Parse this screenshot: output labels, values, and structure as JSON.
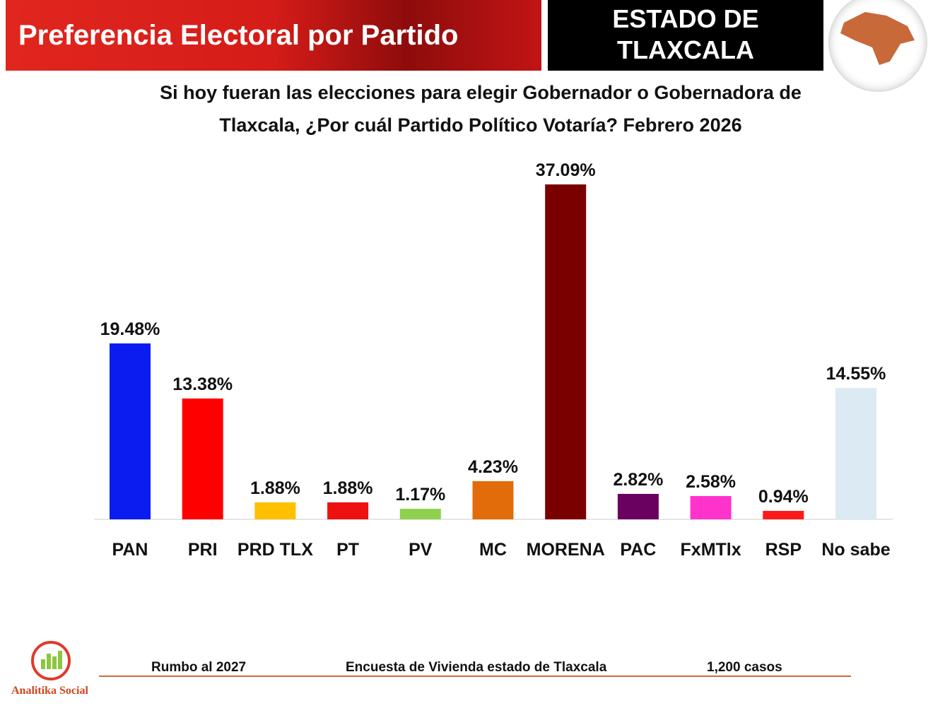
{
  "header": {
    "title": "Preferencia Electoral por Partido",
    "state_line1": "ESTADO DE",
    "state_line2": "TLAXCALA"
  },
  "chart_data": {
    "type": "bar",
    "title": "Si hoy fueran las elecciones para elegir Gobernador o Gobernadora de Tlaxcala, ¿Por cuál Partido Político Votaría? Febrero 2026",
    "title_line1": "Si hoy fueran las elecciones para elegir Gobernador o Gobernadora de",
    "title_line2": "Tlaxcala, ¿Por cuál Partido Político Votaría? Febrero 2026",
    "categories": [
      "PAN",
      "PRI",
      "PRD TLX",
      "PT",
      "PV",
      "MC",
      "MORENA",
      "PAC",
      "FxMTlx",
      "RSP",
      "No sabe"
    ],
    "values": [
      19.48,
      13.38,
      1.88,
      1.88,
      1.17,
      4.23,
      37.09,
      2.82,
      2.58,
      0.94,
      14.55
    ],
    "labels": [
      "19.48%",
      "13.38%",
      "1.88%",
      "1.88%",
      "1.17%",
      "4.23%",
      "37.09%",
      "2.82%",
      "2.58%",
      "0.94%",
      "14.55%"
    ],
    "colors": [
      "#0a1cf0",
      "#ff0000",
      "#ffc000",
      "#ee1111",
      "#8fd14f",
      "#e36c0a",
      "#7a0000",
      "#6a0060",
      "#ff33cc",
      "#ff1a1a",
      "#dbeaf3"
    ],
    "xlabel": "",
    "ylabel": "",
    "ylim": [
      0,
      37.09
    ],
    "grid": false
  },
  "footer": {
    "left": "Rumbo al 2027",
    "center": "Encuesta de Vivienda estado de Tlaxcala",
    "right": "1,200 casos",
    "logo_text": "Analitika Social"
  }
}
